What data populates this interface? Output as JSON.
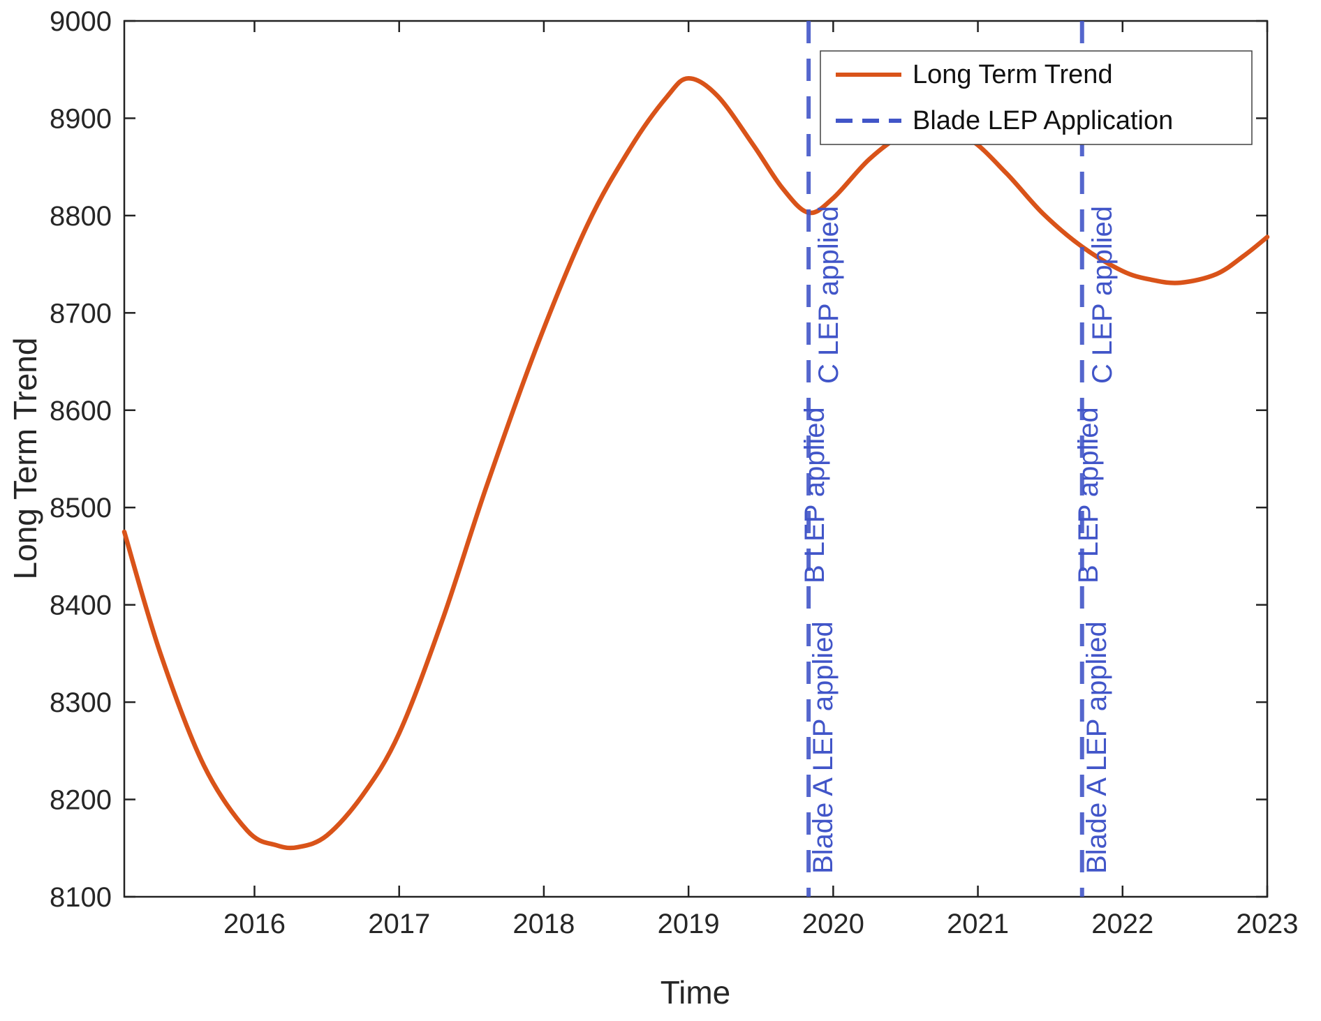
{
  "figure": {
    "background": "#ffffff"
  },
  "chart_data": {
    "type": "line",
    "title": "",
    "xlabel": "Time",
    "ylabel": "Long Term Trend",
    "xlim": [
      2015.1,
      2023
    ],
    "ylim": [
      8100,
      9000
    ],
    "x_ticks": [
      2016,
      2017,
      2018,
      2019,
      2020,
      2021,
      2022,
      2023
    ],
    "y_ticks": [
      8100,
      8200,
      8300,
      8400,
      8500,
      8600,
      8700,
      8800,
      8900,
      9000
    ],
    "grid": false,
    "axis_color": "#262626",
    "series": [
      {
        "name": "Long Term Trend",
        "color": "#d95319",
        "style": "solid",
        "x": [
          2015.1,
          2015.35,
          2015.65,
          2015.95,
          2016.15,
          2016.3,
          2016.5,
          2016.75,
          2017.0,
          2017.3,
          2017.6,
          2017.95,
          2018.3,
          2018.6,
          2018.85,
          2019.0,
          2019.2,
          2019.45,
          2019.65,
          2019.83,
          2020.0,
          2020.25,
          2020.5,
          2020.7,
          2020.95,
          2021.2,
          2021.45,
          2021.72,
          2022.0,
          2022.2,
          2022.4,
          2022.65,
          2022.85,
          2023.0
        ],
        "y": [
          8475,
          8350,
          8235,
          8168,
          8153,
          8151,
          8163,
          8205,
          8268,
          8385,
          8520,
          8665,
          8790,
          8870,
          8922,
          8941,
          8923,
          8872,
          8828,
          8803,
          8818,
          8858,
          8885,
          8892,
          8878,
          8843,
          8802,
          8768,
          8743,
          8734,
          8731,
          8740,
          8760,
          8778
        ]
      }
    ],
    "events": [
      {
        "x": 2019.83,
        "labels": [
          "Blade  A LEP applied",
          "B LEP applied",
          "C LEP applied"
        ]
      },
      {
        "x": 2021.72,
        "labels": [
          "Blade  A LEP applied",
          "B LEP applied",
          "C LEP applied"
        ]
      }
    ],
    "event_color": "#4155c8",
    "legend": {
      "position": "top-right",
      "entries": [
        {
          "label": "Long Term Trend",
          "color": "#d95319",
          "style": "solid"
        },
        {
          "label": "Blade LEP Application",
          "color": "#4155c8",
          "style": "dashed"
        }
      ]
    }
  }
}
